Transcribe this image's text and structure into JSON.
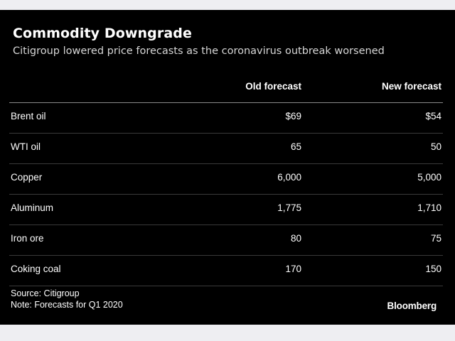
{
  "chart_data": {
    "type": "table",
    "title": "Commodity Downgrade",
    "subtitle": "Citigroup lowered price forecasts as the coronavirus outbreak worsened",
    "columns": [
      "",
      "Old forecast",
      "New forecast"
    ],
    "rows": [
      {
        "label": "Brent oil",
        "old": "$69",
        "new": "$54"
      },
      {
        "label": "WTI oil",
        "old": "65",
        "new": "50"
      },
      {
        "label": "Copper",
        "old": "6,000",
        "new": "5,000"
      },
      {
        "label": "Aluminum",
        "old": "1,775",
        "new": "1,710"
      },
      {
        "label": "Iron ore",
        "old": "80",
        "new": "75"
      },
      {
        "label": "Coking coal",
        "old": "170",
        "new": "150"
      }
    ],
    "source": "Source: Citigroup",
    "note": "Note: Forecasts for Q1 2020",
    "brand": "Bloomberg"
  },
  "colors": {
    "background": "#000000",
    "text": "#ffffff",
    "frame": "#eeeef2"
  }
}
